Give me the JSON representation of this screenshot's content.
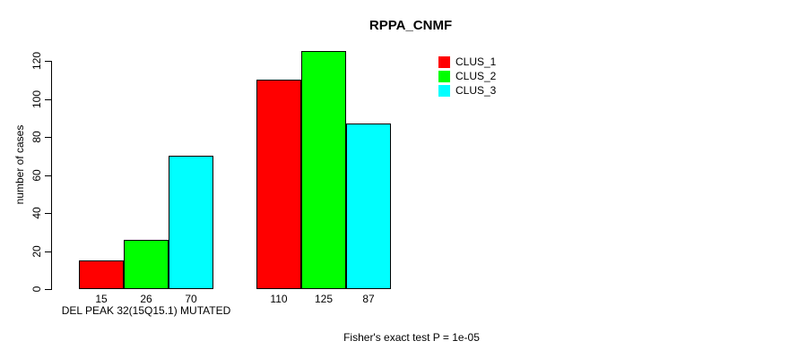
{
  "title": "RPPA_CNMF",
  "footnote": "Fisher's exact test P = 1e-05",
  "colors": {
    "background": "#ffffff",
    "axis": "#000000",
    "text": "#000000",
    "bar_border": "#000000",
    "clus_1": "#ff0000",
    "clus_2": "#00ff00",
    "clus_3": "#00ffff"
  },
  "chart_data": {
    "type": "bar",
    "title": "RPPA_CNMF",
    "xlabel": "",
    "ylabel": "number of cases",
    "ylim": [
      0,
      125
    ],
    "yticks": [
      0,
      20,
      40,
      60,
      80,
      100,
      120
    ],
    "grid": false,
    "legend_position": "top-right",
    "series": [
      {
        "name": "CLUS_1",
        "color": "#ff0000"
      },
      {
        "name": "CLUS_2",
        "color": "#00ff00"
      },
      {
        "name": "CLUS_3",
        "color": "#00ffff"
      }
    ],
    "groups": [
      {
        "label": "DEL PEAK 32(15Q15.1) MUTATED",
        "values": [
          15,
          26,
          70
        ]
      },
      {
        "label": "",
        "values": [
          110,
          125,
          87
        ]
      }
    ],
    "bar_value_labels_shown": true,
    "annotation": "Fisher's exact test P = 1e-05"
  }
}
